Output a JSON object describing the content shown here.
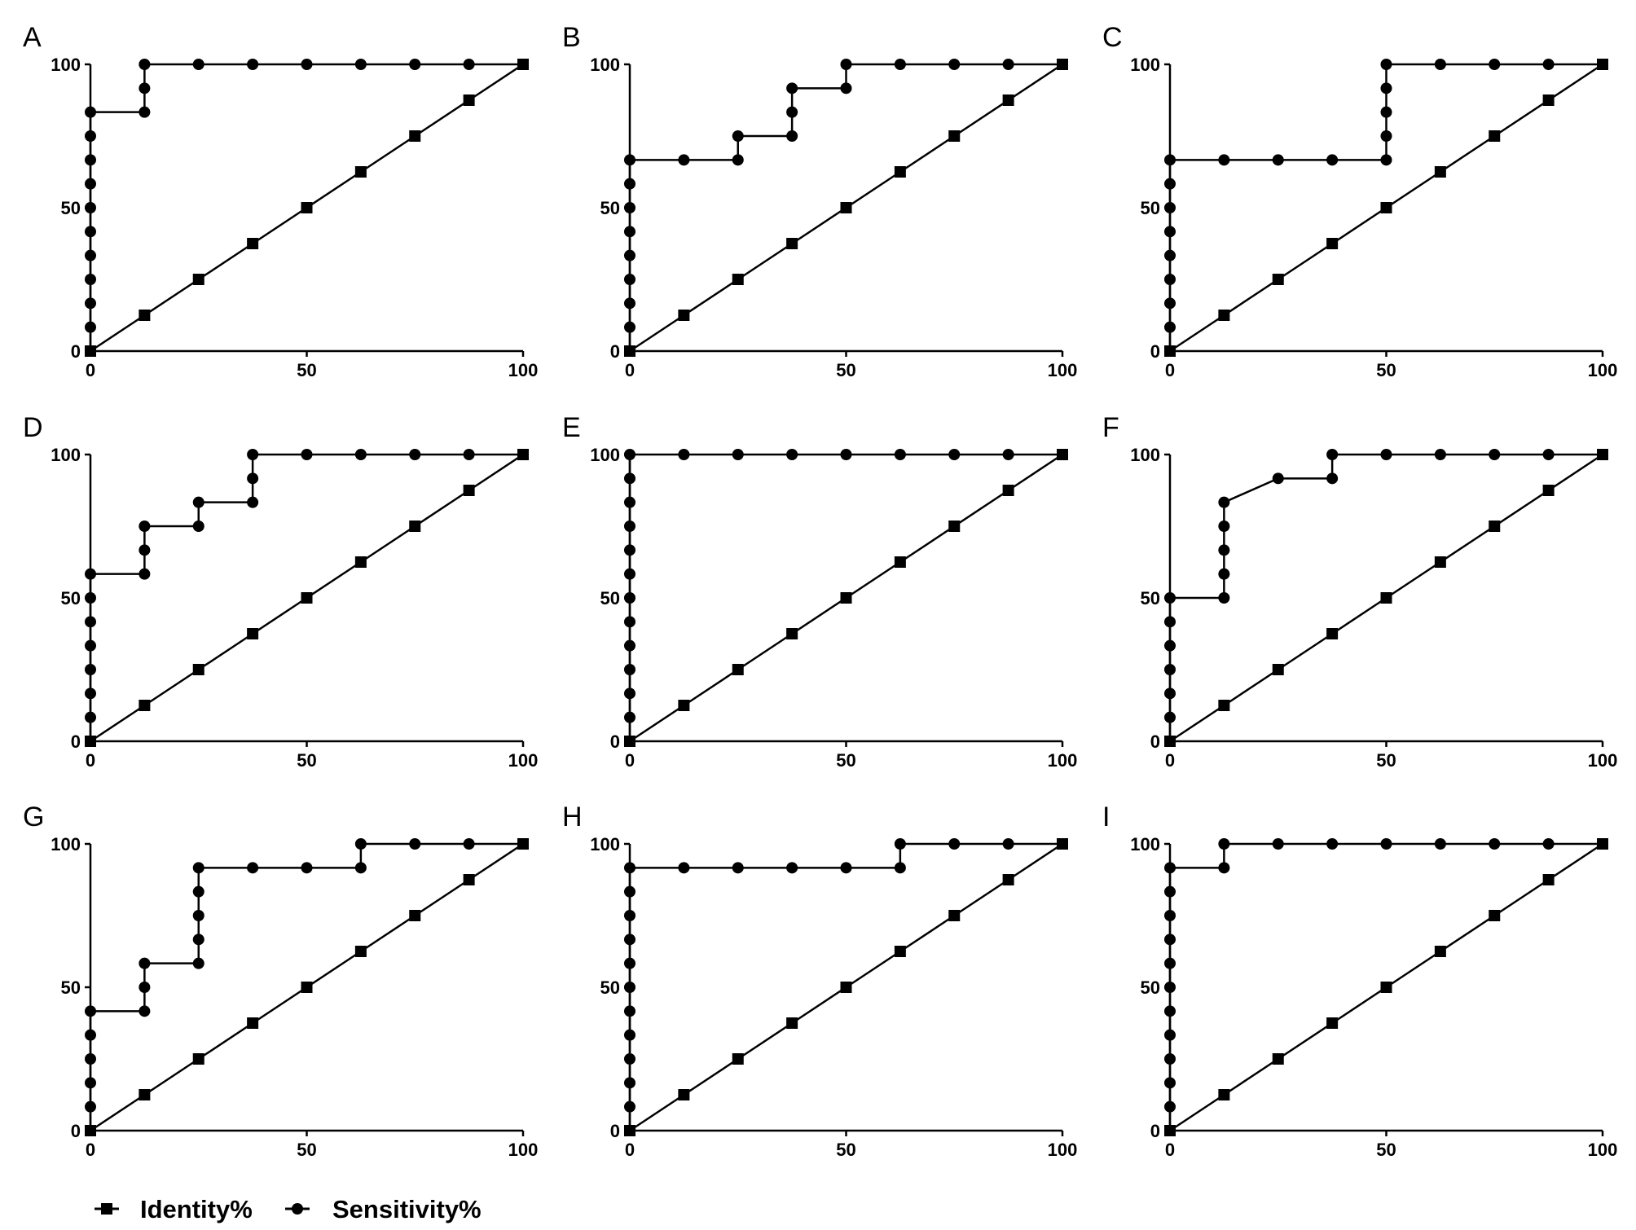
{
  "chart_data": [
    {
      "panel_label": "A",
      "type": "line",
      "xlim": [
        0,
        100
      ],
      "ylim": [
        0,
        100
      ],
      "xticks": [
        "0",
        "50",
        "100"
      ],
      "yticks": [
        "0",
        "50",
        "100"
      ],
      "series": [
        {
          "name": "Identity%",
          "marker": "square",
          "x": [
            0,
            12.5,
            25,
            37.5,
            50,
            62.5,
            75,
            87.5,
            100
          ],
          "y": [
            0,
            12.5,
            25,
            37.5,
            50,
            62.5,
            75,
            87.5,
            100
          ]
        },
        {
          "name": "Sensitivity%",
          "marker": "circle",
          "x": [
            0,
            0,
            0,
            0,
            0,
            0,
            0,
            0,
            0,
            0,
            0,
            12.5,
            12.5,
            12.5,
            25,
            37.5,
            50,
            62.5,
            75,
            87.5,
            100
          ],
          "y": [
            0,
            8.33,
            16.67,
            25,
            33.33,
            41.67,
            50,
            58.33,
            66.67,
            75,
            83.33,
            83.33,
            91.67,
            100,
            100,
            100,
            100,
            100,
            100,
            100,
            100
          ]
        }
      ]
    },
    {
      "panel_label": "B",
      "type": "line",
      "xlim": [
        0,
        100
      ],
      "ylim": [
        0,
        100
      ],
      "xticks": [
        "0",
        "50",
        "100"
      ],
      "yticks": [
        "0",
        "50",
        "100"
      ],
      "series": [
        {
          "name": "Identity%",
          "marker": "square",
          "x": [
            0,
            12.5,
            25,
            37.5,
            50,
            62.5,
            75,
            87.5,
            100
          ],
          "y": [
            0,
            12.5,
            25,
            37.5,
            50,
            62.5,
            75,
            87.5,
            100
          ]
        },
        {
          "name": "Sensitivity%",
          "marker": "circle",
          "x": [
            0,
            0,
            0,
            0,
            0,
            0,
            0,
            0,
            0,
            12.5,
            25,
            25,
            37.5,
            37.5,
            37.5,
            50,
            50,
            62.5,
            75,
            87.5,
            100
          ],
          "y": [
            0,
            8.33,
            16.67,
            25,
            33.33,
            41.67,
            50,
            58.33,
            66.67,
            66.67,
            66.67,
            75,
            75,
            83.33,
            91.67,
            91.67,
            100,
            100,
            100,
            100,
            100
          ]
        }
      ]
    },
    {
      "panel_label": "C",
      "type": "line",
      "xlim": [
        0,
        100
      ],
      "ylim": [
        0,
        100
      ],
      "xticks": [
        "0",
        "50",
        "100"
      ],
      "yticks": [
        "0",
        "50",
        "100"
      ],
      "series": [
        {
          "name": "Identity%",
          "marker": "square",
          "x": [
            0,
            12.5,
            25,
            37.5,
            50,
            62.5,
            75,
            87.5,
            100
          ],
          "y": [
            0,
            12.5,
            25,
            37.5,
            50,
            62.5,
            75,
            87.5,
            100
          ]
        },
        {
          "name": "Sensitivity%",
          "marker": "circle",
          "x": [
            0,
            0,
            0,
            0,
            0,
            0,
            0,
            0,
            0,
            12.5,
            25,
            37.5,
            50,
            50,
            50,
            50,
            50,
            62.5,
            75,
            87.5,
            100
          ],
          "y": [
            0,
            8.33,
            16.67,
            25,
            33.33,
            41.67,
            50,
            58.33,
            66.67,
            66.67,
            66.67,
            66.67,
            66.67,
            75,
            83.33,
            91.67,
            100,
            100,
            100,
            100,
            100
          ]
        }
      ]
    },
    {
      "panel_label": "D",
      "type": "line",
      "xlim": [
        0,
        100
      ],
      "ylim": [
        0,
        100
      ],
      "xticks": [
        "0",
        "50",
        "100"
      ],
      "yticks": [
        "0",
        "50",
        "100"
      ],
      "series": [
        {
          "name": "Identity%",
          "marker": "square",
          "x": [
            0,
            12.5,
            25,
            37.5,
            50,
            62.5,
            75,
            87.5,
            100
          ],
          "y": [
            0,
            12.5,
            25,
            37.5,
            50,
            62.5,
            75,
            87.5,
            100
          ]
        },
        {
          "name": "Sensitivity%",
          "marker": "circle",
          "x": [
            0,
            0,
            0,
            0,
            0,
            0,
            0,
            0,
            12.5,
            12.5,
            12.5,
            25,
            25,
            37.5,
            37.5,
            37.5,
            50,
            62.5,
            75,
            87.5,
            100
          ],
          "y": [
            0,
            8.33,
            16.67,
            25,
            33.33,
            41.67,
            50,
            58.33,
            58.33,
            66.67,
            75,
            75,
            83.33,
            83.33,
            91.67,
            100,
            100,
            100,
            100,
            100,
            100
          ]
        }
      ]
    },
    {
      "panel_label": "E",
      "type": "line",
      "xlim": [
        0,
        100
      ],
      "ylim": [
        0,
        100
      ],
      "xticks": [
        "0",
        "50",
        "100"
      ],
      "yticks": [
        "0",
        "50",
        "100"
      ],
      "series": [
        {
          "name": "Identity%",
          "marker": "square",
          "x": [
            0,
            12.5,
            25,
            37.5,
            50,
            62.5,
            75,
            87.5,
            100
          ],
          "y": [
            0,
            12.5,
            25,
            37.5,
            50,
            62.5,
            75,
            87.5,
            100
          ]
        },
        {
          "name": "Sensitivity%",
          "marker": "circle",
          "x": [
            0,
            0,
            0,
            0,
            0,
            0,
            0,
            0,
            0,
            0,
            0,
            0,
            0,
            12.5,
            25,
            37.5,
            50,
            62.5,
            75,
            87.5,
            100
          ],
          "y": [
            0,
            8.33,
            16.67,
            25,
            33.33,
            41.67,
            50,
            58.33,
            66.67,
            75,
            83.33,
            91.67,
            100,
            100,
            100,
            100,
            100,
            100,
            100,
            100,
            100
          ]
        }
      ]
    },
    {
      "panel_label": "F",
      "type": "line",
      "xlim": [
        0,
        100
      ],
      "ylim": [
        0,
        100
      ],
      "xticks": [
        "0",
        "50",
        "100"
      ],
      "yticks": [
        "0",
        "50",
        "100"
      ],
      "series": [
        {
          "name": "Identity%",
          "marker": "square",
          "x": [
            0,
            12.5,
            25,
            37.5,
            50,
            62.5,
            75,
            87.5,
            100
          ],
          "y": [
            0,
            12.5,
            25,
            37.5,
            50,
            62.5,
            75,
            87.5,
            100
          ]
        },
        {
          "name": "Sensitivity%",
          "marker": "circle",
          "x": [
            0,
            0,
            0,
            0,
            0,
            0,
            0,
            12.5,
            12.5,
            12.5,
            12.5,
            12.5,
            25,
            37.5,
            37.5,
            50,
            62.5,
            75,
            87.5,
            100
          ],
          "y": [
            0,
            8.33,
            16.67,
            25,
            33.33,
            41.67,
            50,
            50,
            58.33,
            66.67,
            75,
            83.33,
            91.67,
            91.67,
            100,
            100,
            100,
            100,
            100,
            100
          ]
        }
      ]
    },
    {
      "panel_label": "G",
      "type": "line",
      "xlim": [
        0,
        100
      ],
      "ylim": [
        0,
        100
      ],
      "xticks": [
        "0",
        "50",
        "100"
      ],
      "yticks": [
        "0",
        "50",
        "100"
      ],
      "series": [
        {
          "name": "Identity%",
          "marker": "square",
          "x": [
            0,
            12.5,
            25,
            37.5,
            50,
            62.5,
            75,
            87.5,
            100
          ],
          "y": [
            0,
            12.5,
            25,
            37.5,
            50,
            62.5,
            75,
            87.5,
            100
          ]
        },
        {
          "name": "Sensitivity%",
          "marker": "circle",
          "x": [
            0,
            0,
            0,
            0,
            0,
            0,
            12.5,
            12.5,
            12.5,
            25,
            25,
            25,
            25,
            25,
            37.5,
            50,
            62.5,
            62.5,
            75,
            87.5,
            100
          ],
          "y": [
            0,
            8.33,
            16.67,
            25,
            33.33,
            41.67,
            41.67,
            50,
            58.33,
            58.33,
            66.67,
            75,
            83.33,
            91.67,
            91.67,
            91.67,
            91.67,
            100,
            100,
            100,
            100
          ]
        }
      ]
    },
    {
      "panel_label": "H",
      "type": "line",
      "xlim": [
        0,
        100
      ],
      "ylim": [
        0,
        100
      ],
      "xticks": [
        "0",
        "50",
        "100"
      ],
      "yticks": [
        "0",
        "50",
        "100"
      ],
      "series": [
        {
          "name": "Identity%",
          "marker": "square",
          "x": [
            0,
            12.5,
            25,
            37.5,
            50,
            62.5,
            75,
            87.5,
            100
          ],
          "y": [
            0,
            12.5,
            25,
            37.5,
            50,
            62.5,
            75,
            87.5,
            100
          ]
        },
        {
          "name": "Sensitivity%",
          "marker": "circle",
          "x": [
            0,
            0,
            0,
            0,
            0,
            0,
            0,
            0,
            0,
            0,
            0,
            0,
            12.5,
            25,
            37.5,
            50,
            62.5,
            62.5,
            75,
            87.5,
            100
          ],
          "y": [
            0,
            8.33,
            16.67,
            25,
            33.33,
            41.67,
            50,
            58.33,
            66.67,
            75,
            83.33,
            91.67,
            91.67,
            91.67,
            91.67,
            91.67,
            91.67,
            100,
            100,
            100,
            100
          ]
        }
      ]
    },
    {
      "panel_label": "I",
      "type": "line",
      "xlim": [
        0,
        100
      ],
      "ylim": [
        0,
        100
      ],
      "xticks": [
        "0",
        "50",
        "100"
      ],
      "yticks": [
        "0",
        "50",
        "100"
      ],
      "series": [
        {
          "name": "Identity%",
          "marker": "square",
          "x": [
            0,
            12.5,
            25,
            37.5,
            50,
            62.5,
            75,
            87.5,
            100
          ],
          "y": [
            0,
            12.5,
            25,
            37.5,
            50,
            62.5,
            75,
            87.5,
            100
          ]
        },
        {
          "name": "Sensitivity%",
          "marker": "circle",
          "x": [
            0,
            0,
            0,
            0,
            0,
            0,
            0,
            0,
            0,
            0,
            0,
            0,
            12.5,
            12.5,
            25,
            37.5,
            50,
            62.5,
            75,
            87.5,
            100
          ],
          "y": [
            0,
            8.33,
            16.67,
            25,
            33.33,
            41.67,
            50,
            58.33,
            66.67,
            75,
            83.33,
            91.67,
            91.67,
            100,
            100,
            100,
            100,
            100,
            100,
            100,
            100
          ]
        }
      ]
    }
  ],
  "legend": {
    "position": "bottom-left",
    "items": [
      {
        "label": "Identity%",
        "marker": "square"
      },
      {
        "label": "Sensitivity%",
        "marker": "circle"
      }
    ]
  }
}
